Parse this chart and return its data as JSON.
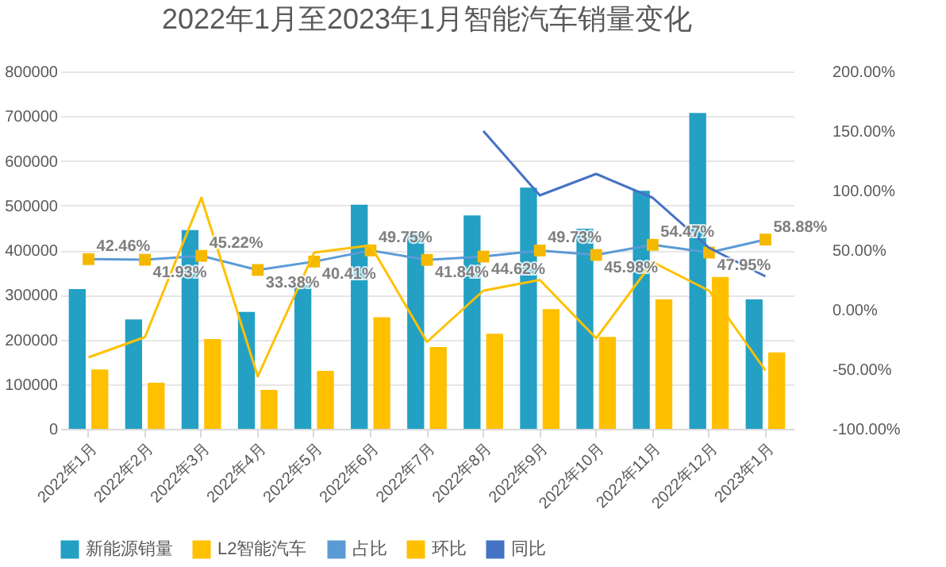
{
  "chart_data": {
    "type": "bar",
    "title": "2022年1月至2023年1月智能汽车销量变化",
    "categories": [
      "2022年1月",
      "2022年2月",
      "2022年3月",
      "2022年4月",
      "2022年5月",
      "2022年6月",
      "2022年7月",
      "2022年8月",
      "2022年9月",
      "2022年10月",
      "2022年11月",
      "2022年12月",
      "2023年1月"
    ],
    "series": [
      {
        "name": "新能源销量",
        "color": "#23a0c4",
        "values": [
          313000,
          245000,
          445000,
          262000,
          322000,
          502000,
          438000,
          478000,
          540000,
          448000,
          533000,
          707000,
          290000
        ]
      },
      {
        "name": "L2智能汽车",
        "color": "#ffc000",
        "values": [
          133000,
          103000,
          201000,
          87000,
          130000,
          250000,
          183000,
          213000,
          268000,
          206000,
          290000,
          340000,
          171000
        ]
      },
      {
        "name": "占比",
        "type": "line",
        "axis": "y2",
        "marker": "square",
        "color": "#5b9bd5",
        "colors": [
          "#f5b800",
          "#f5b800",
          "#f5b800",
          "#f5b800",
          "#f5b800",
          "#f5b800",
          "#f5b800",
          "#f5b800",
          "#f5b800",
          "#f5b800",
          "#f5b800",
          "#f5b800",
          "#f5b800"
        ],
        "values": [
          42.46,
          41.93,
          45.22,
          33.38,
          40.41,
          49.75,
          41.84,
          44.62,
          49.73,
          45.98,
          54.47,
          47.95,
          58.88
        ],
        "value_labels": [
          "42.46%",
          "41.93%",
          "45.22%",
          "33.38%",
          "40.41%",
          "49.75%",
          "41.84%",
          "44.62%",
          "49.73%",
          "45.98%",
          "54.47%",
          "47.95%",
          "58.88%"
        ]
      },
      {
        "name": "环比",
        "type": "line",
        "axis": "y2",
        "color": "#ffc000",
        "values": [
          -40,
          -23,
          94,
          -56,
          48,
          54,
          -27,
          16,
          25,
          -24,
          40,
          16,
          -51
        ]
      },
      {
        "name": "同比",
        "type": "line",
        "axis": "y2",
        "color": "#4472c4",
        "values": [
          null,
          null,
          null,
          null,
          null,
          null,
          null,
          150,
          96,
          114,
          94,
          52,
          28
        ]
      }
    ],
    "ylim": [
      0,
      800000
    ],
    "yticks": [
      0,
      100000,
      200000,
      300000,
      400000,
      500000,
      600000,
      700000,
      800000
    ],
    "y2lim": [
      -100,
      200
    ],
    "y2ticks": [
      {
        "value": -100,
        "label": "-100.00%"
      },
      {
        "value": -50,
        "label": "-50.00%"
      },
      {
        "value": 0,
        "label": "0.00%"
      },
      {
        "value": 50,
        "label": "50.00%"
      },
      {
        "value": 100,
        "label": "100.00%"
      },
      {
        "value": 150,
        "label": "150.00%"
      },
      {
        "value": 200,
        "label": "200.00%"
      }
    ],
    "grid": "y",
    "legend": "bottom"
  }
}
